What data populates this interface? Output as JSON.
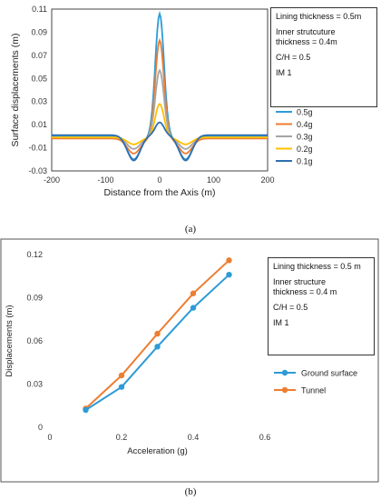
{
  "chart_data": [
    {
      "type": "line",
      "caption": "(a)",
      "xlabel": "Distance from the Axis (m)",
      "ylabel": "Surface displacements (m)",
      "xlim": [
        -200,
        200
      ],
      "ylim": [
        -0.03,
        0.11
      ],
      "xticks": [
        -200,
        -100,
        0,
        100,
        200
      ],
      "yticks": [
        -0.03,
        -0.01,
        0.01,
        0.03,
        0.05,
        0.07,
        0.09,
        0.11
      ],
      "ytick_labels": [
        "-0.03",
        "-0.01",
        "0.01",
        "0.03",
        "0.05",
        "0.07",
        "0.09",
        "0.11"
      ],
      "grid": false,
      "info": [
        "Lining thickness = 0.5m",
        "Inner strutcuture\nthickness = 0.4m",
        "C/H = 0.5",
        "IM 1"
      ],
      "legend_position": "right",
      "series": [
        {
          "name": "0.5g",
          "color": "#2e9bd6",
          "peak": 0.106,
          "trough": -0.02,
          "base": 0.0
        },
        {
          "name": "0.4g",
          "color": "#ed7d31",
          "peak": 0.083,
          "trough": -0.015,
          "base": -0.002
        },
        {
          "name": "0.3g",
          "color": "#a5a5a5",
          "peak": 0.057,
          "trough": -0.011,
          "base": -0.001
        },
        {
          "name": "0.2g",
          "color": "#ffc000",
          "peak": 0.028,
          "trough": -0.007,
          "base": -0.001
        },
        {
          "name": "0.1g",
          "color": "#2f6fb0",
          "peak": 0.012,
          "trough": -0.021,
          "base": 0.001
        }
      ]
    },
    {
      "type": "line",
      "caption": "(b)",
      "xlabel": "Acceleration (g)",
      "ylabel": "Displacements (m)",
      "xlim": [
        0,
        0.6
      ],
      "ylim": [
        0,
        0.12
      ],
      "xticks": [
        0,
        0.2,
        0.4,
        0.6
      ],
      "xtick_labels": [
        "0",
        "0.2",
        "0.4",
        "0.6"
      ],
      "yticks": [
        0,
        0.03,
        0.06,
        0.09,
        0.12
      ],
      "ytick_labels": [
        "0",
        "0.03",
        "0.06",
        "0.09",
        "0.12"
      ],
      "grid": false,
      "info": [
        "Lining thickness = 0.5 m",
        "Inner structure\nthickness = 0.4 m",
        "C/H = 0.5",
        "IM 1"
      ],
      "legend_position": "right",
      "x": [
        0.1,
        0.2,
        0.3,
        0.4,
        0.5
      ],
      "series": [
        {
          "name": "Ground surface",
          "color": "#2e9bd6",
          "values": [
            0.012,
            0.028,
            0.056,
            0.083,
            0.106
          ]
        },
        {
          "name": "Tunnel",
          "color": "#ed7d31",
          "values": [
            0.013,
            0.036,
            0.065,
            0.093,
            0.116
          ]
        }
      ]
    }
  ]
}
